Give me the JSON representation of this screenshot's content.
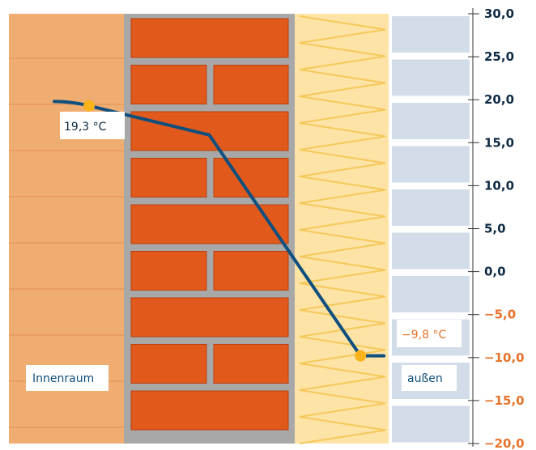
{
  "colors": {
    "interior": "#f0ad72",
    "interior_line": "#e59a5c",
    "mortar": "#a8a8a8",
    "brick": "#e15a1c",
    "brick_dark": "#b8400e",
    "insulation": "#fde3a6",
    "insulation_line": "#f6c85a",
    "exterior_panel": "#d3dde9",
    "curve": "#0e4f7e",
    "point": "#f9b21a",
    "positive_text": "#0e2a44",
    "negative_text": "#e8732a"
  },
  "axis": {
    "ticks": [
      "30,0",
      "25,0",
      "20,0",
      "15,0",
      "10,0",
      "5,0",
      "0,0",
      "−5,0",
      "−10,0",
      "−15,0",
      "−20,0"
    ],
    "range": [
      -20,
      30
    ]
  },
  "chart_data": {
    "type": "line",
    "series": [
      {
        "points": [
          {
            "x": 0,
            "y": 19.8
          },
          {
            "x": 0.25,
            "y": 19.8
          },
          {
            "x": 0.5,
            "y": 19.3
          },
          {
            "x": 1.5,
            "y": 15.9
          },
          {
            "x": 2.7,
            "y": -9.8
          },
          {
            "x": 2.95,
            "y": -9.8
          }
        ]
      }
    ],
    "ylim": [
      -20,
      30
    ]
  },
  "labels": {
    "inside_temp": "19,3 °C",
    "outside_temp": "−9,8 °C",
    "inside": "Innenraum",
    "outside": "außen"
  }
}
